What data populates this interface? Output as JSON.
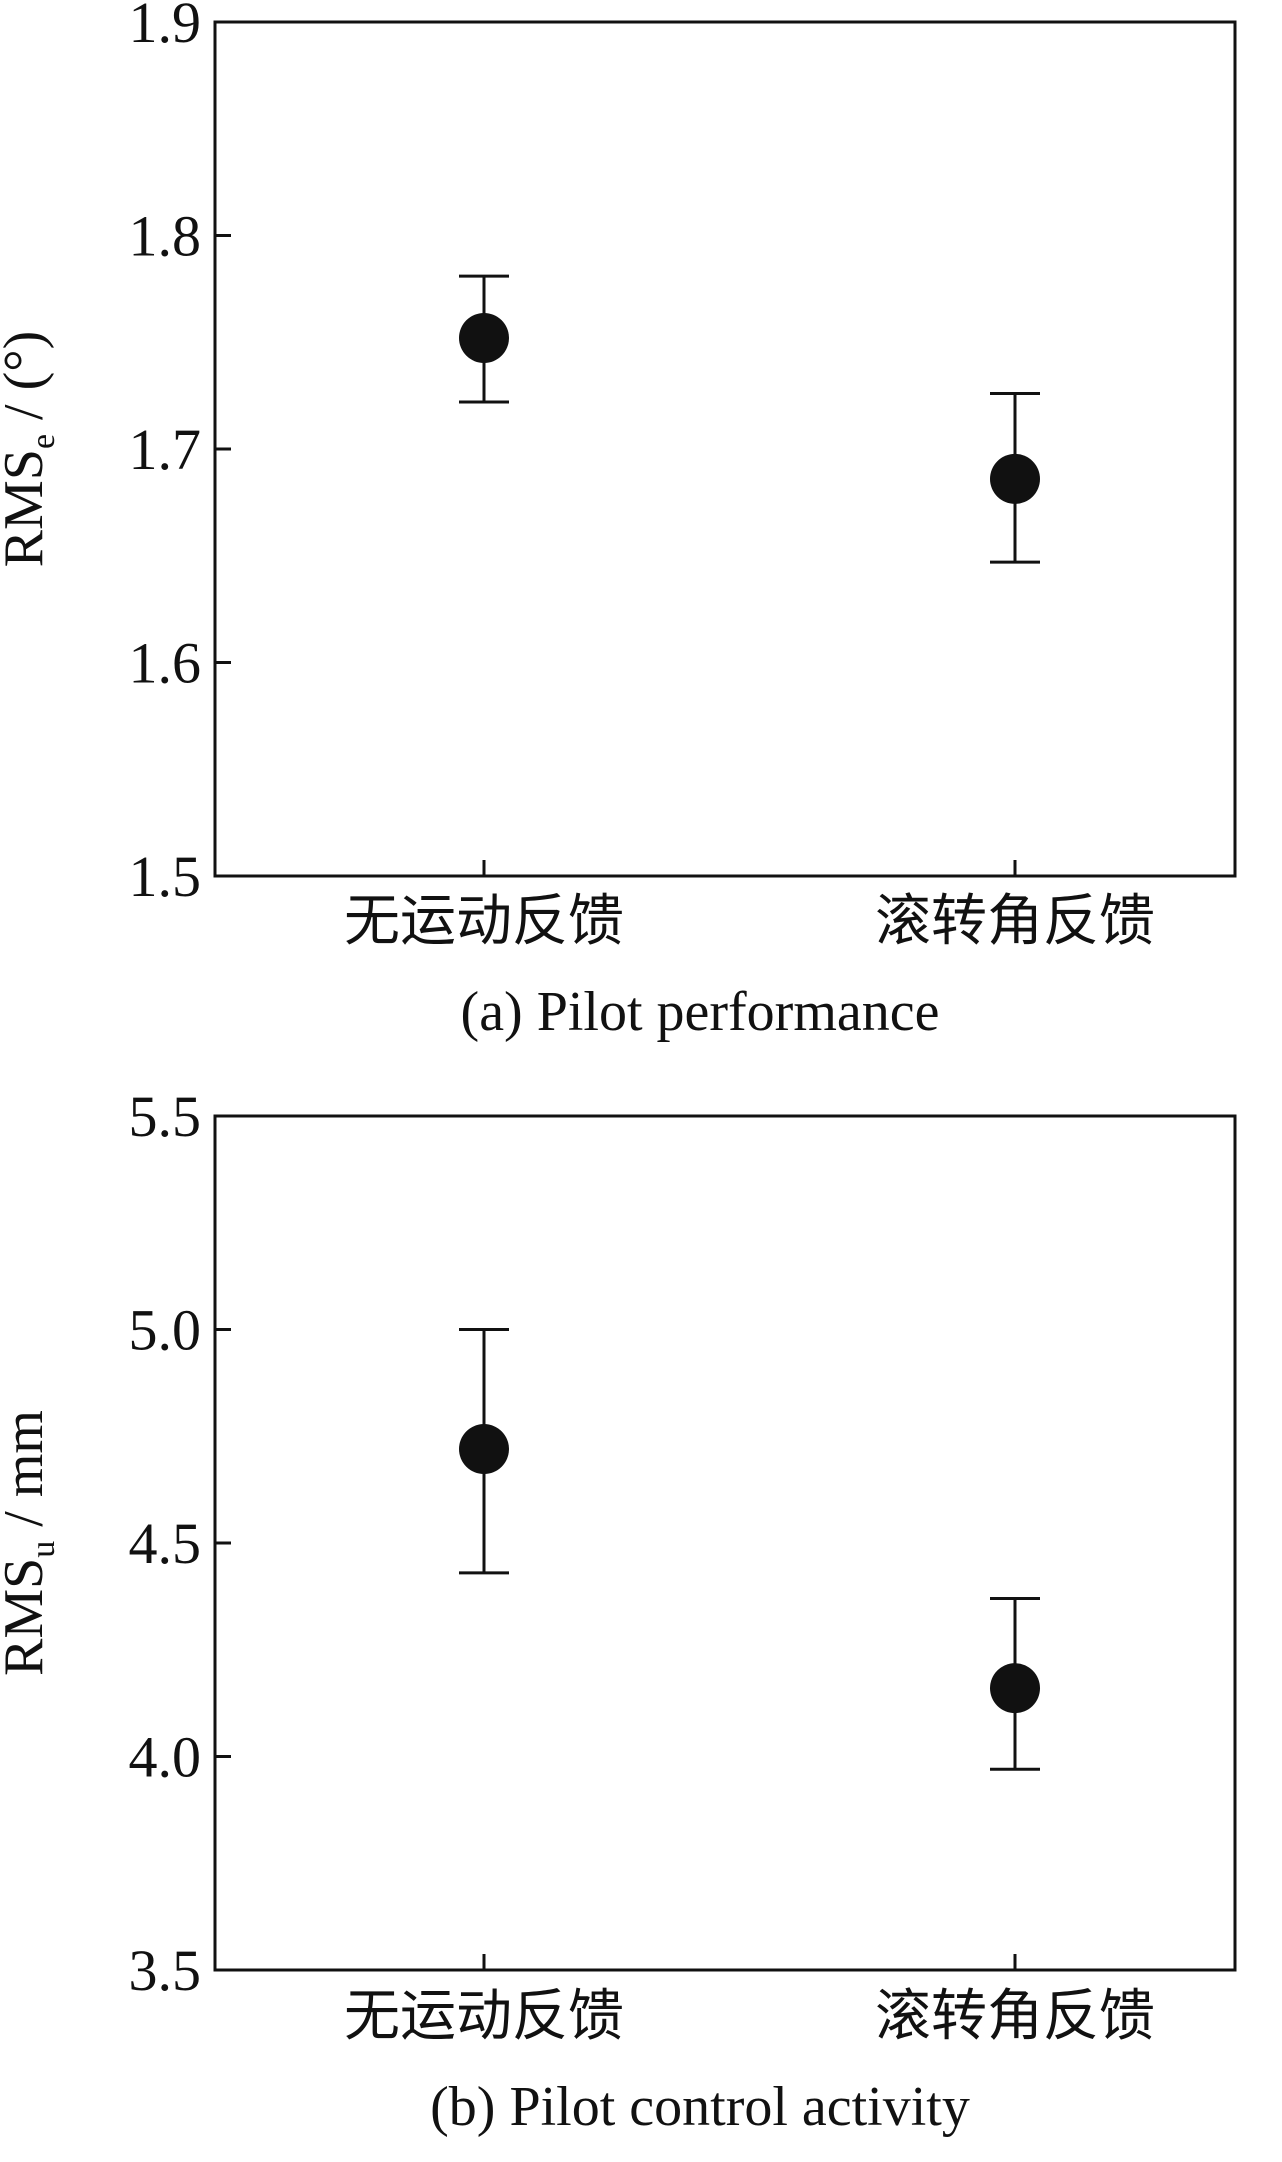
{
  "chart_data": [
    {
      "type": "scatter",
      "caption": "(a) Pilot performance",
      "ylabel": {
        "main": "RMS",
        "sub": "e",
        "unit": " / (°)"
      },
      "categories": [
        "无运动反馈",
        "滚转角反馈"
      ],
      "ylim": [
        1.5,
        1.9
      ],
      "yticks": [
        "1.5",
        "1.6",
        "1.7",
        "1.8",
        "1.9"
      ],
      "series": [
        {
          "values": [
            1.752,
            1.686
          ],
          "err_low": [
            1.722,
            1.647
          ],
          "err_high": [
            1.781,
            1.726
          ]
        }
      ]
    },
    {
      "type": "scatter",
      "caption": "(b) Pilot control activity",
      "ylabel": {
        "main": "RMS",
        "sub": "u",
        "unit": " / mm"
      },
      "categories": [
        "无运动反馈",
        "滚转角反馈"
      ],
      "ylim": [
        3.5,
        5.5
      ],
      "yticks": [
        "3.5",
        "4.0",
        "4.5",
        "5.0",
        "5.5"
      ],
      "series": [
        {
          "values": [
            4.72,
            4.16
          ],
          "err_low": [
            4.43,
            3.97
          ],
          "err_high": [
            5.0,
            4.37
          ]
        }
      ]
    }
  ]
}
